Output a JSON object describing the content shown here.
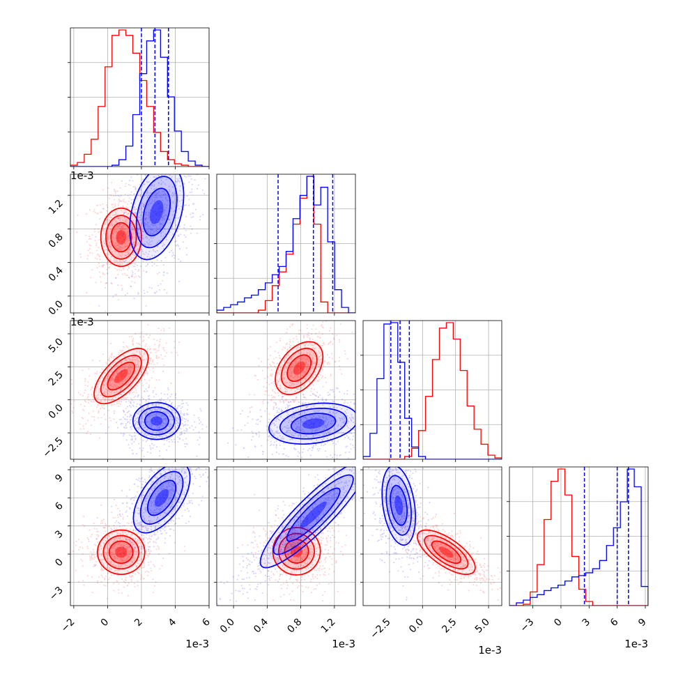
{
  "chart_data": {
    "type": "corner",
    "grid": true,
    "params": [
      {
        "range": [
          -2.2,
          6.0
        ],
        "ticks": [
          -2,
          0,
          2,
          4,
          6
        ],
        "offset_text": "1e-3"
      },
      {
        "range": [
          -0.2,
          1.45
        ],
        "ticks": [
          0.0,
          0.4,
          0.8,
          1.2
        ],
        "offset_text": "1e-3"
      },
      {
        "range": [
          -4.5,
          6.0
        ],
        "ticks": [
          -2.5,
          0.0,
          2.5,
          5.0
        ],
        "offset_text": "1e-3"
      },
      {
        "range": [
          -5.5,
          9.3
        ],
        "ticks": [
          -3,
          0,
          3,
          6,
          9
        ],
        "offset_text": "1e-3"
      }
    ],
    "series": [
      {
        "color": "#ff0000",
        "means": [
          0.8,
          0.78,
          1.8,
          0.2
        ],
        "sds": [
          0.85,
          0.15,
          1.1,
          1.4
        ],
        "quantiles": null,
        "hists": [
          [
            0.01,
            0.03,
            0.09,
            0.2,
            0.44,
            0.73,
            0.96,
            1.0,
            0.96,
            0.83,
            0.63,
            0.44,
            0.25,
            0.11,
            0.05,
            0.02,
            0.01,
            0.0,
            0.0,
            0.0
          ],
          [
            0.0,
            0.0,
            0.0,
            0.0,
            0.0,
            0.0,
            0.02,
            0.09,
            0.2,
            0.3,
            0.43,
            0.65,
            0.84,
            1.0,
            0.65,
            0.08,
            0.0,
            0.0,
            0.0,
            0.0
          ],
          [
            0.0,
            0.0,
            0.0,
            0.0,
            0.0,
            0.0,
            0.02,
            0.08,
            0.21,
            0.46,
            0.73,
            0.96,
            1.0,
            0.88,
            0.65,
            0.39,
            0.22,
            0.11,
            0.03,
            0.01
          ],
          [
            0.0,
            0.0,
            0.01,
            0.1,
            0.3,
            0.63,
            0.91,
            1.0,
            0.81,
            0.36,
            0.12,
            0.03,
            0.0,
            0.0,
            0.0,
            0.0,
            0.0,
            0.0,
            0.0,
            0.0
          ]
        ]
      },
      {
        "color": "#0000ff",
        "means": [
          2.9,
          1.0,
          -1.6,
          5.5
        ],
        "sds": [
          0.8,
          0.28,
          0.8,
          2.0
        ],
        "quantiles": [
          [
            2.0,
            2.8,
            3.6
          ],
          [
            0.53,
            0.95,
            1.18
          ],
          [
            -2.4,
            -1.7,
            -1.0
          ],
          [
            2.5,
            6.0,
            7.2
          ]
        ],
        "hists": [
          [
            0.0,
            0.0,
            0.0,
            0.0,
            0.0,
            0.0,
            0.01,
            0.05,
            0.15,
            0.38,
            0.68,
            0.92,
            1.0,
            0.8,
            0.51,
            0.26,
            0.11,
            0.04,
            0.01,
            0.0
          ],
          [
            0.02,
            0.04,
            0.06,
            0.08,
            0.11,
            0.13,
            0.17,
            0.22,
            0.28,
            0.34,
            0.45,
            0.69,
            0.86,
            1.0,
            0.79,
            0.92,
            0.52,
            0.17,
            0.04,
            0.0
          ],
          [
            0.02,
            0.19,
            0.59,
            0.99,
            1.0,
            0.71,
            0.3,
            0.09,
            0.02,
            0.0,
            0.0,
            0.0,
            0.0,
            0.0,
            0.0,
            0.0,
            0.0,
            0.0,
            0.0,
            0.0
          ],
          [
            0.0,
            0.02,
            0.04,
            0.06,
            0.08,
            0.11,
            0.13,
            0.15,
            0.18,
            0.21,
            0.22,
            0.24,
            0.27,
            0.33,
            0.44,
            0.57,
            0.76,
            1.0,
            0.87,
            0.14
          ]
        ]
      }
    ],
    "pairs": {
      "1_0": [
        {
          "mean": [
            0.8,
            0.7
          ],
          "cov": [
            [
              0.36,
              0.0
            ],
            [
              0.0,
              0.03
            ]
          ]
        },
        {
          "mean": [
            2.9,
            1.0
          ],
          "cov": [
            [
              0.64,
              0.08
            ],
            [
              0.08,
              0.08
            ]
          ]
        }
      ],
      "2_0": [
        {
          "mean": [
            0.8,
            1.8
          ],
          "cov": [
            [
              0.64,
              0.54
            ],
            [
              0.54,
              1.1
            ]
          ]
        },
        {
          "mean": [
            2.9,
            -1.6
          ],
          "cov": [
            [
              0.49,
              0.0
            ],
            [
              0.0,
              0.49
            ]
          ]
        }
      ],
      "2_1": [
        {
          "mean": [
            0.78,
            2.4
          ],
          "cov": [
            [
              0.02,
              0.06
            ],
            [
              0.06,
              1.0
            ]
          ]
        },
        {
          "mean": [
            0.95,
            -1.8
          ],
          "cov": [
            [
              0.07,
              0.05
            ],
            [
              0.05,
              0.6
            ]
          ]
        }
      ],
      "3_0": [
        {
          "mean": [
            0.8,
            0.2
          ],
          "cov": [
            [
              0.49,
              0.0
            ],
            [
              0.0,
              1.4
            ]
          ]
        },
        {
          "mean": [
            3.2,
            6.0
          ],
          "cov": [
            [
              0.7,
              0.9
            ],
            [
              0.9,
              3.5
            ]
          ]
        }
      ],
      "3_1": [
        {
          "mean": [
            0.75,
            0.3
          ],
          "cov": [
            [
              0.02,
              0.0
            ],
            [
              0.0,
              1.6
            ]
          ]
        },
        {
          "mean": [
            0.95,
            4.2
          ],
          "cov": [
            [
              0.1,
              0.8
            ],
            [
              0.8,
              8.0
            ]
          ]
        }
      ],
      "3_2": [
        {
          "mean": [
            1.8,
            0.2
          ],
          "cov": [
            [
              1.2,
              -0.9
            ],
            [
              -0.9,
              1.4
            ]
          ]
        },
        {
          "mean": [
            -1.8,
            5.2
          ],
          "cov": [
            [
              0.4,
              -0.4
            ],
            [
              -0.4,
              4.5
            ]
          ]
        }
      ]
    }
  }
}
